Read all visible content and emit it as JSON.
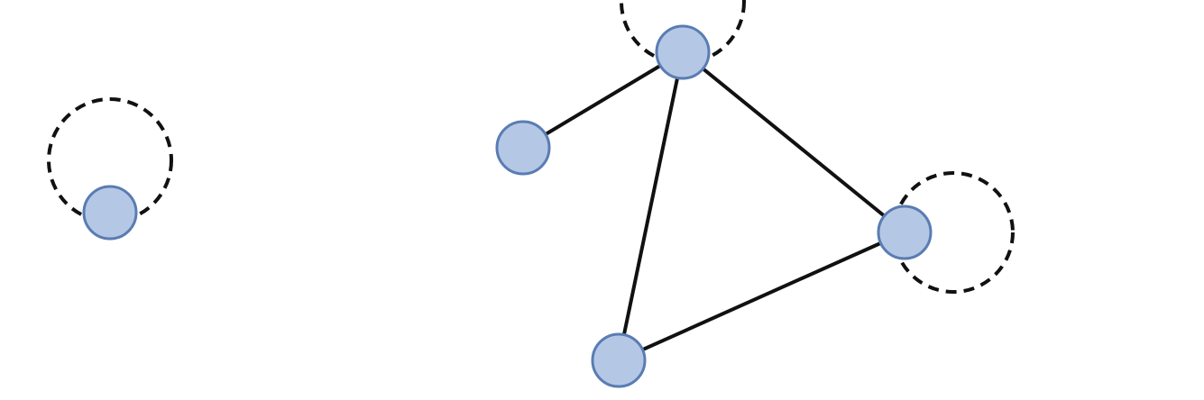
{
  "colors": {
    "node_fill": "#b4c8e6",
    "node_stroke": "#5a7cb2",
    "edge": "#111111",
    "loop": "#111111",
    "background": "#ffffff"
  },
  "nodes": [
    {
      "id": "isolated"
    },
    {
      "id": "top"
    },
    {
      "id": "left"
    },
    {
      "id": "right"
    },
    {
      "id": "bottom"
    }
  ],
  "edges": [
    {
      "source": "top",
      "target": "left"
    },
    {
      "source": "top",
      "target": "right"
    },
    {
      "source": "top",
      "target": "bottom"
    },
    {
      "source": "right",
      "target": "bottom"
    }
  ],
  "self_loops": [
    {
      "node": "isolated"
    },
    {
      "node": "top"
    },
    {
      "node": "right"
    }
  ]
}
